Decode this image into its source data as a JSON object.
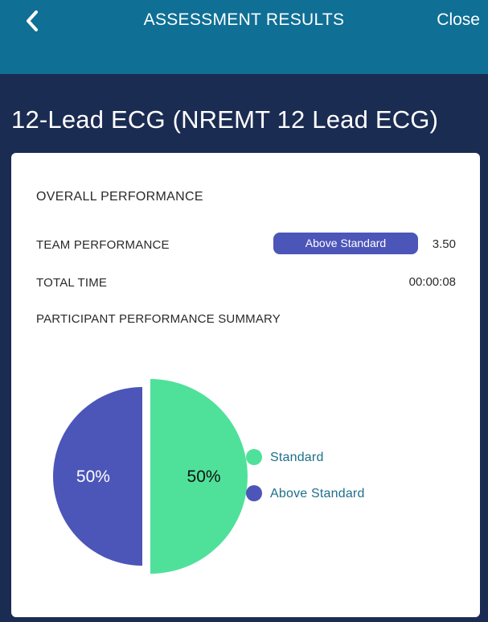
{
  "header": {
    "title": "ASSESSMENT RESULTS",
    "close_label": "Close",
    "back_icon": "chevron-left-icon",
    "background_color": "#0f6f95"
  },
  "page_title": "12-Lead ECG (NREMT 12 Lead ECG)",
  "overall": {
    "heading": "OVERALL PERFORMANCE",
    "team_performance_label": "TEAM PERFORMANCE",
    "team_performance_badge": "Above Standard",
    "team_performance_score": "3.50",
    "total_time_label": "TOTAL TIME",
    "total_time_value": "00:00:08",
    "summary_heading": "PARTICIPANT PERFORMANCE SUMMARY"
  },
  "chart_data": {
    "type": "pie",
    "slices": [
      {
        "label": "Standard",
        "value": 50,
        "display": "50%",
        "color": "#4fe19a",
        "highlighted": true
      },
      {
        "label": "Above Standard",
        "value": 50,
        "display": "50%",
        "color": "#4c55b8",
        "highlighted": false
      }
    ],
    "legend_placement": "right"
  },
  "colors": {
    "page_background": "#1b2c52",
    "badge": "#4c55b8",
    "standard": "#4fe19a",
    "above_standard": "#4c55b8",
    "legend_text": "#1e6f8c"
  }
}
